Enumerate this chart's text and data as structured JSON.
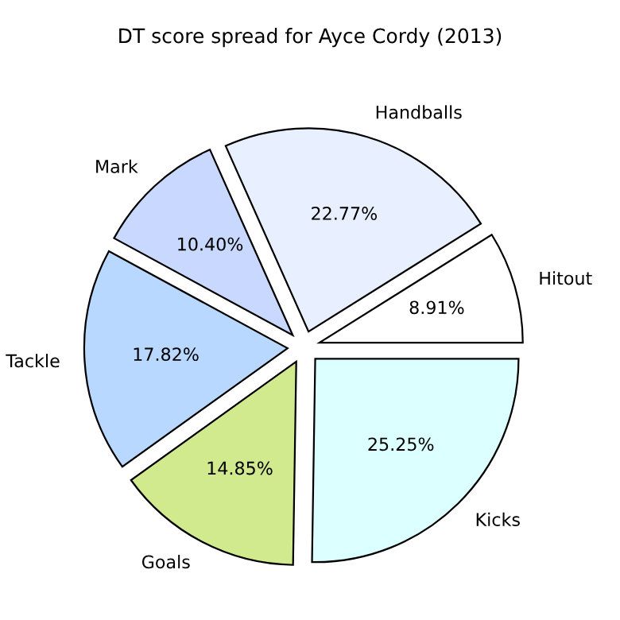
{
  "chart_data": {
    "type": "pie",
    "title": "DT score spread for Ayce Cordy (2013)",
    "categories": [
      "Hitout",
      "Handballs",
      "Mark",
      "Tackle",
      "Goals",
      "Kicks"
    ],
    "values": [
      8.91,
      22.77,
      10.4,
      17.82,
      14.85,
      25.25
    ],
    "value_labels": [
      "8.91%",
      "22.77%",
      "10.40%",
      "17.82%",
      "14.85%",
      "25.25%"
    ],
    "colors": [
      "#ffffff",
      "#e8f0ff",
      "#c8d8ff",
      "#b8d8ff",
      "#d2ea8e",
      "#dcffff"
    ],
    "legend": false
  }
}
